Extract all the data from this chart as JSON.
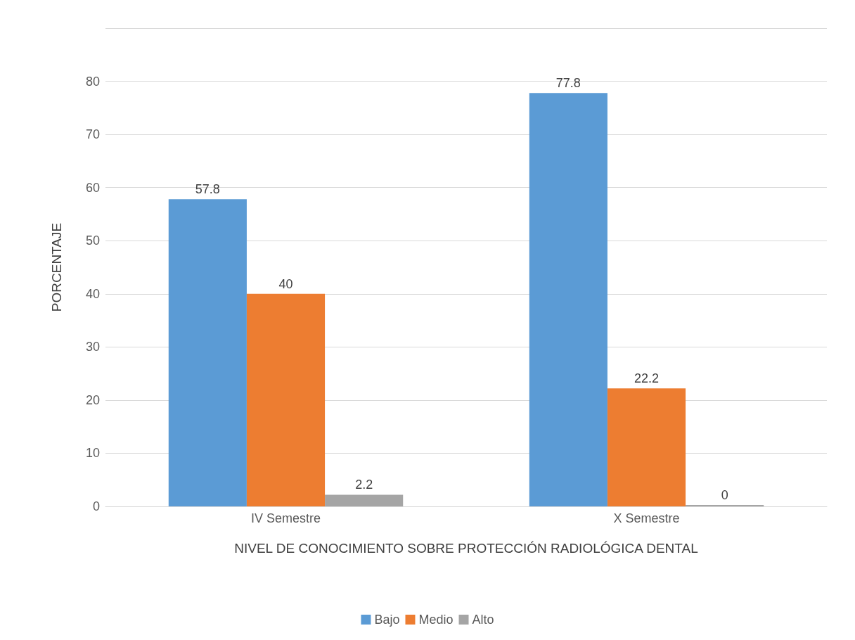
{
  "chart_data": {
    "type": "bar",
    "xlabel": "NIVEL DE CONOCIMIENTO SOBRE PROTECCIÓN RADIOLÓGICA DENTAL",
    "ylabel": "PORCENTAJE",
    "categories": [
      "IV Semestre",
      "X Semestre"
    ],
    "series": [
      {
        "name": "Bajo",
        "color": "#5b9bd5",
        "values": [
          57.8,
          77.8
        ]
      },
      {
        "name": "Medio",
        "color": "#ed7d31",
        "values": [
          40,
          22.2
        ]
      },
      {
        "name": "Alto",
        "color": "#a5a5a5",
        "values": [
          2.2,
          0
        ]
      }
    ],
    "ylim": [
      0,
      90
    ],
    "yticks": [
      0,
      10,
      20,
      30,
      40,
      50,
      60,
      70,
      80,
      {
        "value": 90,
        "label": null
      }
    ],
    "grid": "y",
    "legend": "bottom",
    "data_labels": true
  }
}
